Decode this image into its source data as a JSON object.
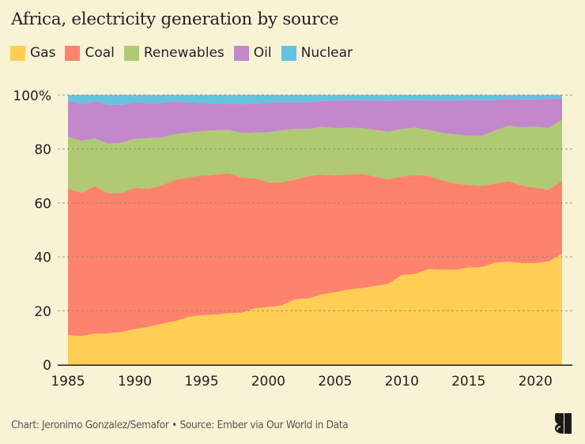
{
  "chart_data": {
    "type": "area",
    "stacked": true,
    "normalized": true,
    "title": "Africa, electricity generation by source",
    "xlabel": "",
    "ylabel": "",
    "xlim": [
      1985,
      2022
    ],
    "ylim": [
      0,
      100
    ],
    "x_ticks": [
      "1985",
      "1990",
      "1995",
      "2000",
      "2005",
      "2010",
      "2015",
      "2020"
    ],
    "y_ticks": [
      "0",
      "20",
      "40",
      "60",
      "80",
      "100%"
    ],
    "grid": "horizontal dashed",
    "legend_position": "top-left",
    "x": [
      1985,
      1986,
      1987,
      1988,
      1989,
      1990,
      1991,
      1992,
      1993,
      1994,
      1995,
      1996,
      1997,
      1998,
      1999,
      2000,
      2001,
      2002,
      2003,
      2004,
      2005,
      2006,
      2007,
      2008,
      2009,
      2010,
      2011,
      2012,
      2013,
      2014,
      2015,
      2016,
      2017,
      2018,
      2019,
      2020,
      2021,
      2022
    ],
    "series": [
      {
        "name": "Gas",
        "color": "#ffce55",
        "values": [
          11.0,
          10.6,
          11.5,
          11.7,
          12.1,
          13.3,
          14.0,
          15.2,
          16.2,
          17.7,
          18.4,
          18.6,
          19.1,
          19.3,
          20.9,
          21.4,
          22.0,
          24.3,
          24.6,
          26.1,
          26.9,
          27.9,
          28.4,
          29.2,
          30.0,
          33.3,
          33.7,
          35.5,
          35.3,
          35.2,
          36.1,
          36.2,
          37.9,
          38.2,
          37.7,
          37.7,
          38.3,
          41.3
        ]
      },
      {
        "name": "Coal",
        "color": "#fd836c",
        "values": [
          54.3,
          53.2,
          54.8,
          52.0,
          51.6,
          52.3,
          51.3,
          51.3,
          52.4,
          51.7,
          51.7,
          51.9,
          51.9,
          50.1,
          48.2,
          46.2,
          45.6,
          44.4,
          45.4,
          44.4,
          43.4,
          42.7,
          42.4,
          40.6,
          38.8,
          36.5,
          36.6,
          34.6,
          33.1,
          32.0,
          30.5,
          30.2,
          29.3,
          29.9,
          28.7,
          28.0,
          26.6,
          26.9
        ]
      },
      {
        "name": "Renewables",
        "color": "#afca73",
        "values": [
          19.2,
          19.2,
          17.6,
          18.3,
          18.6,
          18.2,
          18.7,
          17.7,
          16.9,
          16.6,
          16.5,
          16.4,
          16.1,
          16.5,
          17.0,
          18.6,
          19.3,
          18.7,
          17.4,
          17.7,
          17.4,
          17.3,
          16.9,
          17.3,
          17.6,
          17.6,
          17.6,
          17.0,
          17.5,
          18.2,
          18.3,
          18.5,
          19.7,
          20.5,
          21.6,
          22.6,
          22.9,
          22.6
        ]
      },
      {
        "name": "Oil",
        "color": "#c388cc",
        "values": [
          13.3,
          13.7,
          13.8,
          14.4,
          14.1,
          13.4,
          13.1,
          12.9,
          12.2,
          11.2,
          10.5,
          10.0,
          9.7,
          10.7,
          10.8,
          10.9,
          10.5,
          10.0,
          10.0,
          9.6,
          10.2,
          10.2,
          10.3,
          10.8,
          11.4,
          10.6,
          10.2,
          10.9,
          12.1,
          12.5,
          13.4,
          13.1,
          11.3,
          10.0,
          10.4,
          10.1,
          10.8,
          8.0
        ]
      },
      {
        "name": "Nuclear",
        "color": "#64c3e0",
        "values": [
          2.2,
          3.3,
          2.3,
          3.6,
          3.6,
          2.8,
          2.9,
          2.9,
          2.3,
          2.8,
          2.9,
          3.1,
          3.2,
          3.4,
          3.1,
          2.9,
          2.6,
          2.6,
          2.6,
          2.2,
          2.1,
          1.9,
          2.0,
          2.1,
          2.2,
          2.0,
          1.9,
          2.0,
          2.0,
          2.1,
          1.7,
          2.0,
          1.8,
          1.4,
          1.6,
          1.6,
          1.4,
          1.2
        ]
      }
    ]
  },
  "footer": {
    "credit": "Chart: Jeronimo Gonzalez/Semafor • Source: Ember via Our World in Data"
  },
  "logo": {
    "icon": "semafor-logo-icon"
  },
  "axis_color": "#1f1f1f",
  "grid_color": "#8a8677",
  "background": "#f9f3d6"
}
